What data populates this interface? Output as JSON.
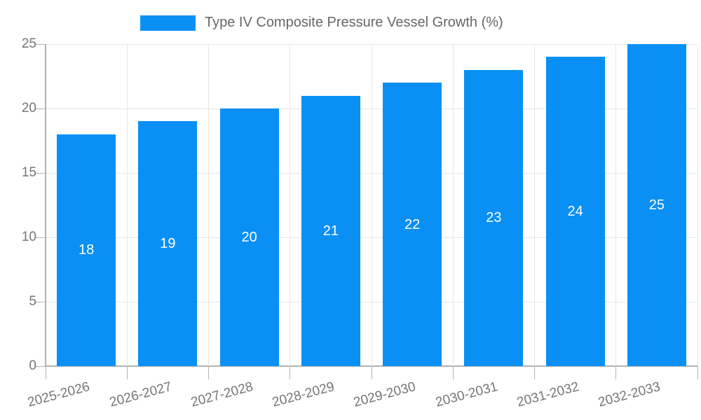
{
  "legend": {
    "label": "Type IV Composite Pressure Vessel Growth (%)"
  },
  "chart_data": {
    "type": "bar",
    "title": "Type IV Composite Pressure Vessel Growth (%)",
    "categories": [
      "2025-2026",
      "2026-2027",
      "2027-2028",
      "2028-2029",
      "2029-2030",
      "2030-2031",
      "2031-2032",
      "2032-2033"
    ],
    "values": [
      18,
      19,
      20,
      21,
      22,
      23,
      24,
      25
    ],
    "data_labels": [
      "18",
      "19",
      "20",
      "21",
      "22",
      "23",
      "24",
      "25"
    ],
    "xlabel": "",
    "ylabel": "",
    "ylim": [
      0,
      25
    ],
    "yticks": [
      0,
      5,
      10,
      15,
      20,
      25
    ],
    "grid": true,
    "legend_position": "top",
    "x_label_rotation_deg": -15,
    "data_label_position": "inside-center"
  },
  "colors": {
    "bar": "#0A90F5",
    "gridline": "#e6e6e6",
    "axis_line": "#b3b3b3",
    "tick_text": "#757575",
    "legend_text": "#666666",
    "data_label_text": "#ffffff",
    "background": "#ffffff"
  }
}
